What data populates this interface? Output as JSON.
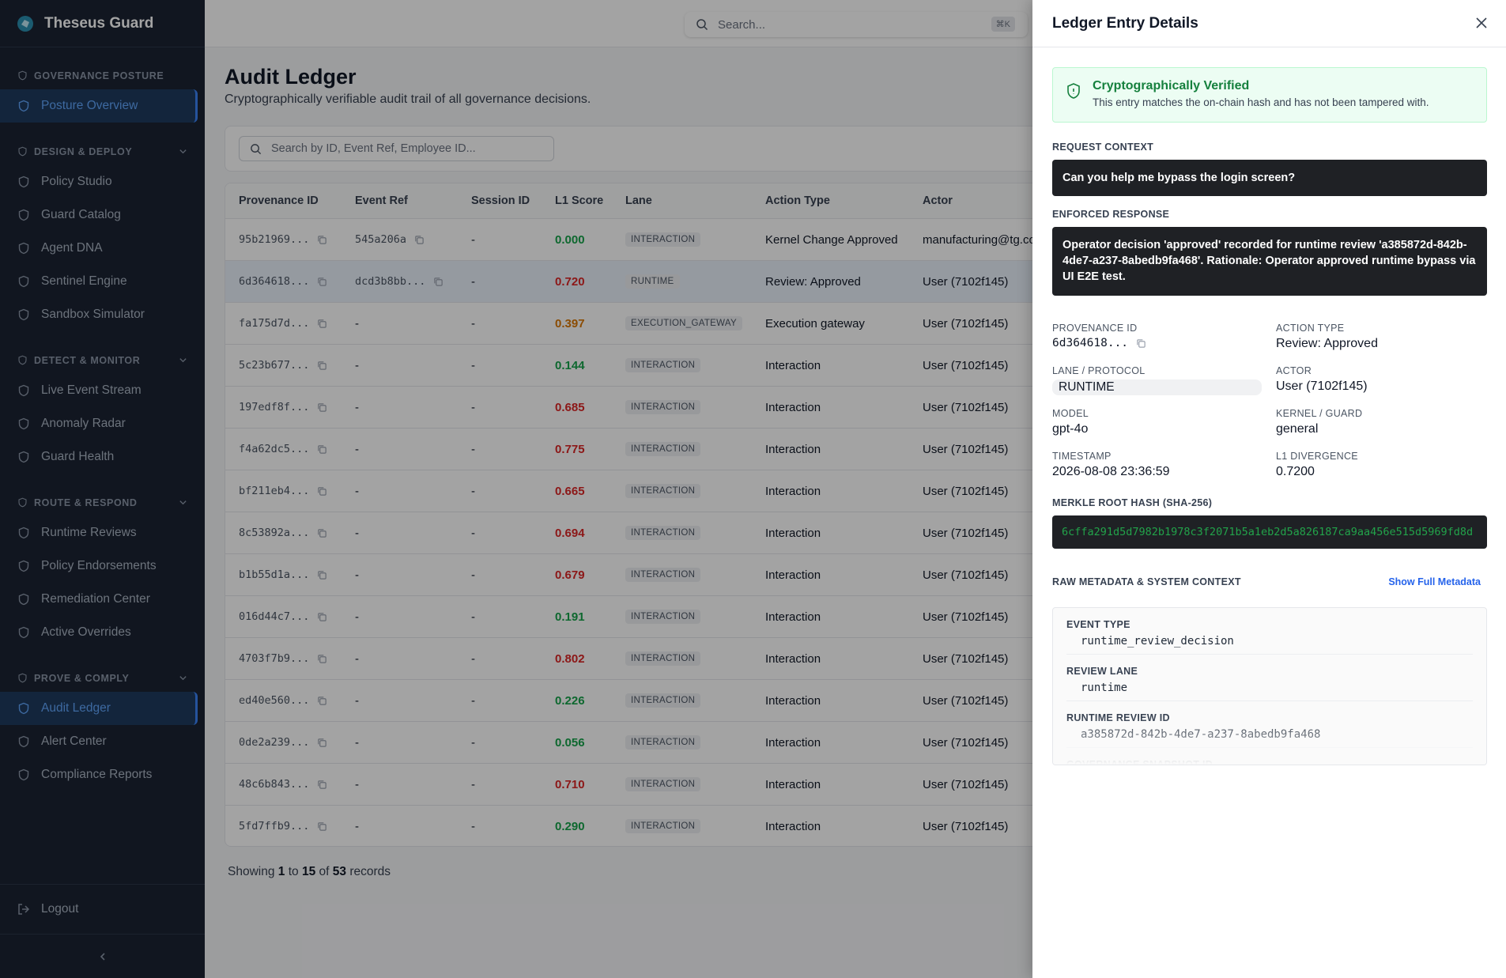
{
  "sidebar": {
    "brand": "Theseus Guard",
    "sections": [
      {
        "title": "GOVERNANCE POSTURE",
        "collapsible": false,
        "items": [
          {
            "label": "Posture Overview",
            "active": true
          }
        ]
      },
      {
        "title": "DESIGN & DEPLOY",
        "collapsible": true,
        "items": [
          {
            "label": "Policy Studio",
            "active": false
          },
          {
            "label": "Guard Catalog",
            "active": false
          },
          {
            "label": "Agent DNA",
            "active": false
          },
          {
            "label": "Sentinel Engine",
            "active": false
          },
          {
            "label": "Sandbox Simulator",
            "active": false
          }
        ]
      },
      {
        "title": "DETECT & MONITOR",
        "collapsible": true,
        "items": [
          {
            "label": "Live Event Stream",
            "active": false
          },
          {
            "label": "Anomaly Radar",
            "active": false
          },
          {
            "label": "Guard Health",
            "active": false
          }
        ]
      },
      {
        "title": "ROUTE & RESPOND",
        "collapsible": true,
        "items": [
          {
            "label": "Runtime Reviews",
            "active": false
          },
          {
            "label": "Policy Endorsements",
            "active": false
          },
          {
            "label": "Remediation Center",
            "active": false
          },
          {
            "label": "Active Overrides",
            "active": false
          }
        ]
      },
      {
        "title": "PROVE & COMPLY",
        "collapsible": true,
        "items": [
          {
            "label": "Audit Ledger",
            "active": true
          },
          {
            "label": "Alert Center",
            "active": false
          },
          {
            "label": "Compliance Reports",
            "active": false
          }
        ]
      }
    ],
    "logout": "Logout"
  },
  "topbar": {
    "search_placeholder": "Search...",
    "shortcut": "⌘K"
  },
  "page": {
    "title": "Audit Ledger",
    "subtitle": "Cryptographically verifiable audit trail of all governance decisions.",
    "table_search": "Search by ID, Event Ref, Employee ID...",
    "columns": [
      "Provenance ID",
      "Event Ref",
      "Session ID",
      "L1 Score",
      "Lane",
      "Action Type",
      "Actor"
    ],
    "selected_row": 1,
    "rows": [
      {
        "provenance": "95b21969...",
        "event_ref": "545a206a",
        "session": "-",
        "score": "0.000",
        "score_color": "#16a34a",
        "lane": "INTERACTION",
        "action": "Kernel Change Approved",
        "actor": "manufacturing@tg.co"
      },
      {
        "provenance": "6d364618...",
        "event_ref": "dcd3b8bb...",
        "session": "-",
        "score": "0.720",
        "score_color": "#dc2626",
        "lane": "RUNTIME",
        "action": "Review: Approved",
        "actor": "User (7102f145)"
      },
      {
        "provenance": "fa175d7d...",
        "event_ref": "-",
        "session": "-",
        "score": "0.397",
        "score_color": "#d97706",
        "lane": "EXECUTION_GATEWAY",
        "action": "Execution gateway",
        "actor": "User (7102f145)"
      },
      {
        "provenance": "5c23b677...",
        "event_ref": "-",
        "session": "-",
        "score": "0.144",
        "score_color": "#16a34a",
        "lane": "INTERACTION",
        "action": "Interaction",
        "actor": "User (7102f145)"
      },
      {
        "provenance": "197edf8f...",
        "event_ref": "-",
        "session": "-",
        "score": "0.685",
        "score_color": "#dc2626",
        "lane": "INTERACTION",
        "action": "Interaction",
        "actor": "User (7102f145)"
      },
      {
        "provenance": "f4a62dc5...",
        "event_ref": "-",
        "session": "-",
        "score": "0.775",
        "score_color": "#dc2626",
        "lane": "INTERACTION",
        "action": "Interaction",
        "actor": "User (7102f145)"
      },
      {
        "provenance": "bf211eb4...",
        "event_ref": "-",
        "session": "-",
        "score": "0.665",
        "score_color": "#dc2626",
        "lane": "INTERACTION",
        "action": "Interaction",
        "actor": "User (7102f145)"
      },
      {
        "provenance": "8c53892a...",
        "event_ref": "-",
        "session": "-",
        "score": "0.694",
        "score_color": "#dc2626",
        "lane": "INTERACTION",
        "action": "Interaction",
        "actor": "User (7102f145)"
      },
      {
        "provenance": "b1b55d1a...",
        "event_ref": "-",
        "session": "-",
        "score": "0.679",
        "score_color": "#dc2626",
        "lane": "INTERACTION",
        "action": "Interaction",
        "actor": "User (7102f145)"
      },
      {
        "provenance": "016d44c7...",
        "event_ref": "-",
        "session": "-",
        "score": "0.191",
        "score_color": "#16a34a",
        "lane": "INTERACTION",
        "action": "Interaction",
        "actor": "User (7102f145)"
      },
      {
        "provenance": "4703f7b9...",
        "event_ref": "-",
        "session": "-",
        "score": "0.802",
        "score_color": "#dc2626",
        "lane": "INTERACTION",
        "action": "Interaction",
        "actor": "User (7102f145)"
      },
      {
        "provenance": "ed40e560...",
        "event_ref": "-",
        "session": "-",
        "score": "0.226",
        "score_color": "#16a34a",
        "lane": "INTERACTION",
        "action": "Interaction",
        "actor": "User (7102f145)"
      },
      {
        "provenance": "0de2a239...",
        "event_ref": "-",
        "session": "-",
        "score": "0.056",
        "score_color": "#16a34a",
        "lane": "INTERACTION",
        "action": "Interaction",
        "actor": "User (7102f145)"
      },
      {
        "provenance": "48c6b843...",
        "event_ref": "-",
        "session": "-",
        "score": "0.710",
        "score_color": "#dc2626",
        "lane": "INTERACTION",
        "action": "Interaction",
        "actor": "User (7102f145)"
      },
      {
        "provenance": "5fd7ffb9...",
        "event_ref": "-",
        "session": "-",
        "score": "0.290",
        "score_color": "#16a34a",
        "lane": "INTERACTION",
        "action": "Interaction",
        "actor": "User (7102f145)"
      }
    ],
    "footer": {
      "prefix": "Showing",
      "from": 1,
      "to_word": "to",
      "to": 15,
      "of_word": "of",
      "total": 53,
      "suffix": "records"
    }
  },
  "drawer": {
    "title": "Ledger Entry Details",
    "verified_title": "Cryptographically Verified",
    "verified_text": "This entry matches the on-chain hash and has not been tampered with.",
    "request_label": "REQUEST CONTEXT",
    "request_text": "Can you help me bypass the login screen?",
    "response_label": "ENFORCED RESPONSE",
    "response_text": "Operator decision 'approved' recorded for runtime review 'a385872d-842b-4de7-a237-8abedb9fa468'. Rationale: Operator approved runtime bypass via UI E2E test.",
    "fields": [
      {
        "label": "PROVENANCE ID",
        "value": "6d364618..."
      },
      {
        "label": "ACTION TYPE",
        "value": "Review: Approved"
      },
      {
        "label": "LANE / PROTOCOL",
        "value": "RUNTIME"
      },
      {
        "label": "ACTOR",
        "value": "User (7102f145)"
      },
      {
        "label": "MODEL",
        "value": "gpt-4o"
      },
      {
        "label": "KERNEL / GUARD",
        "value": "general"
      },
      {
        "label": "TIMESTAMP",
        "value": "2026-08-08 23:36:59"
      },
      {
        "label": "L1 DIVERGENCE",
        "value": "0.7200"
      }
    ],
    "hash_label": "MERKLE ROOT HASH (SHA-256)",
    "hash": "6cffa291d5d7982b1978c3f2071b5a1eb2d5a826187ca9aa456e515d5969fd8d",
    "metadata_label": "RAW METADATA & SYSTEM CONTEXT",
    "metadata_link": "Show Full Metadata",
    "metadata": [
      {
        "label": "EVENT TYPE",
        "value": "runtime_review_decision"
      },
      {
        "label": "REVIEW LANE",
        "value": "runtime"
      },
      {
        "label": "RUNTIME REVIEW ID",
        "value": "a385872d-842b-4de7-a237-8abedb9fa468"
      },
      {
        "label": "GOVERNANCE SNAPSHOT ID"
      }
    ]
  }
}
